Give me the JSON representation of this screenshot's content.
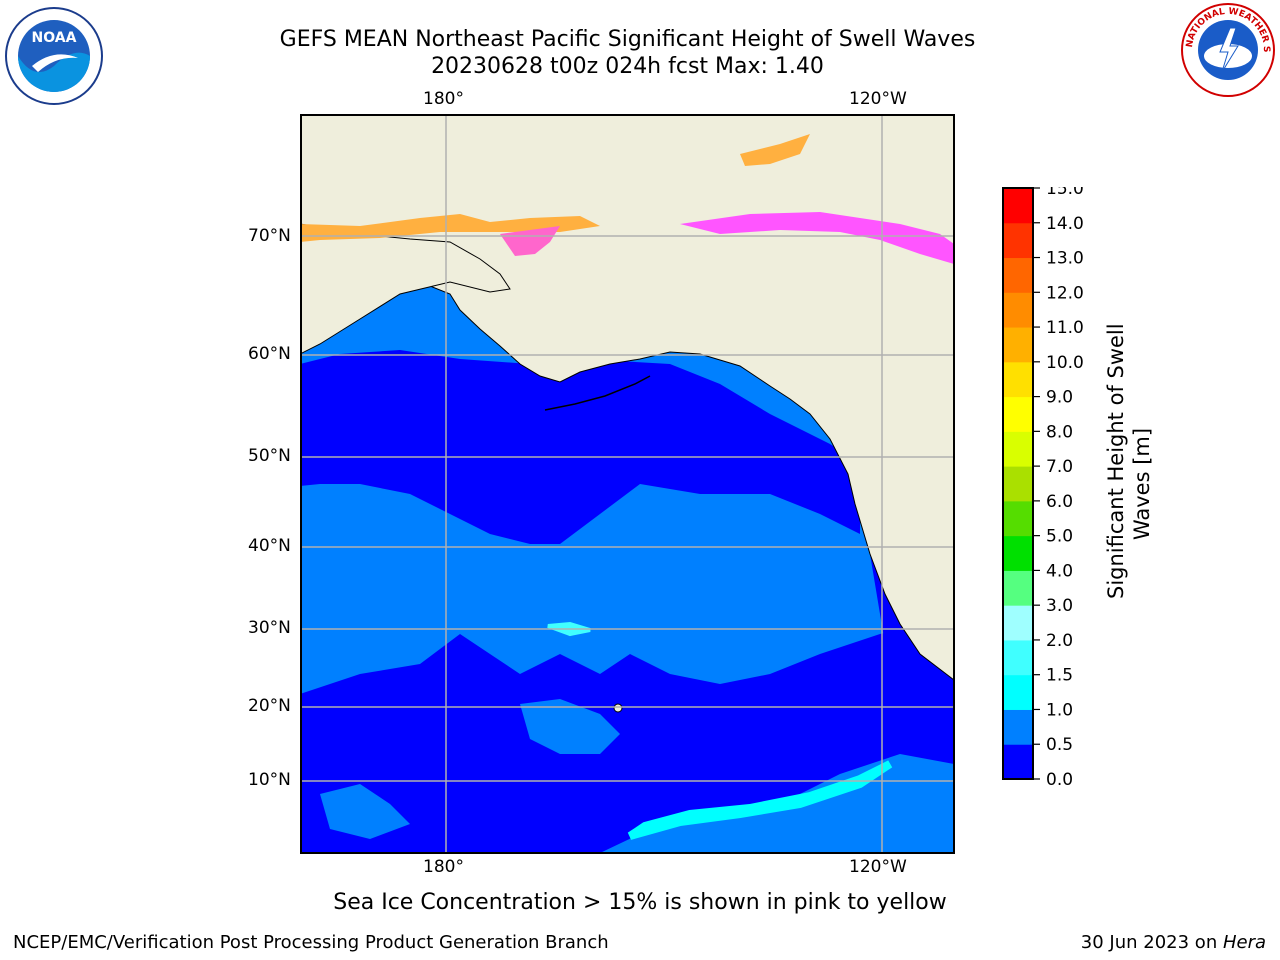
{
  "title": {
    "line1": "GEFS MEAN Northeast Pacific Significant Height of Swell Waves",
    "line2": "20230628 t00z 024h fcst   Max: 1.40"
  },
  "axes": {
    "top_lon_labels": [
      "180°",
      "120°W"
    ],
    "bottom_lon_labels": [
      "180°",
      "120°W"
    ],
    "lat_labels": [
      "70°N",
      "60°N",
      "50°N",
      "40°N",
      "30°N",
      "20°N",
      "10°N"
    ]
  },
  "colorbar": {
    "label_line1": "Significant Height of Swell",
    "label_line2": "Waves [m]",
    "ticks": [
      "0.0",
      "0.5",
      "1.0",
      "1.5",
      "2.0",
      "3.0",
      "4.0",
      "5.0",
      "6.0",
      "7.0",
      "8.0",
      "9.0",
      "10.0",
      "11.0",
      "12.0",
      "13.0",
      "14.0",
      "15.0"
    ],
    "colors": [
      "#0000ff",
      "#0080ff",
      "#00ffff",
      "#40ffff",
      "#9fffff",
      "#55ff80",
      "#00e000",
      "#55dd00",
      "#aae000",
      "#d9ff00",
      "#ffff00",
      "#ffe000",
      "#ffb000",
      "#ff8c00",
      "#ff6600",
      "#ff3300",
      "#ff0000"
    ]
  },
  "map": {
    "land_color": "#efeedc",
    "ocean_low_color": "#0000ff",
    "ocean_mid_color": "#0080ff",
    "ocean_high_color": "#00ffff",
    "ice_colors": [
      "#ff66cc",
      "#ffb040",
      "#ff55ff"
    ]
  },
  "logos": {
    "noaa_text": "NOAA",
    "nws_text": "NATIONAL WEATHER SERVICE"
  },
  "caption": "Sea Ice Concentration > 15% is shown in pink to yellow",
  "footer": {
    "left": "NCEP/EMC/Verification Post Processing Product Generation Branch",
    "right_prefix": "30 Jun 2023 on ",
    "right_system": "Hera"
  }
}
